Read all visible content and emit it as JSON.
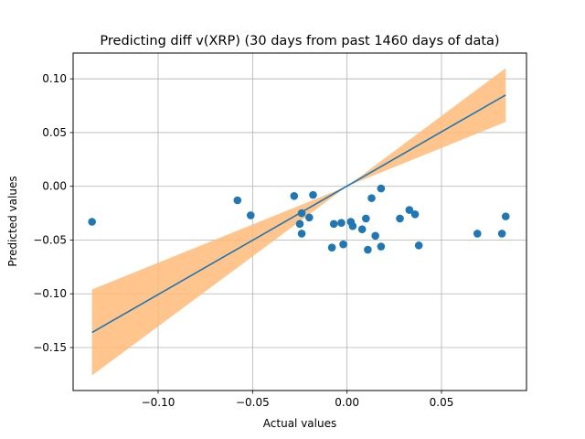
{
  "chart_data": {
    "type": "scatter",
    "title": "Predicting diff v(XRP) (30 days from past 1460 days of data)",
    "xlabel": "Actual values",
    "ylabel": "Predicted values",
    "xlim": [
      -0.145,
      0.095
    ],
    "ylim": [
      -0.19,
      0.124
    ],
    "xticks": [
      -0.1,
      -0.05,
      0.0,
      0.05
    ],
    "xtick_labels": [
      "−0.10",
      "−0.05",
      "0.00",
      "0.05"
    ],
    "yticks": [
      -0.15,
      -0.1,
      -0.05,
      0.0,
      0.05,
      0.1
    ],
    "ytick_labels": [
      "−0.15",
      "−0.10",
      "−0.05",
      "0.00",
      "0.05",
      "0.10"
    ],
    "grid": true,
    "colors": {
      "points": "#1f77b4",
      "fit_line": "#1f77b4",
      "band": "#ffbb78",
      "grid": "#b0b0b0"
    },
    "points": [
      {
        "x": -0.135,
        "y": -0.033
      },
      {
        "x": -0.058,
        "y": -0.013
      },
      {
        "x": -0.051,
        "y": -0.027
      },
      {
        "x": -0.028,
        "y": -0.009
      },
      {
        "x": -0.025,
        "y": -0.035
      },
      {
        "x": -0.024,
        "y": -0.025
      },
      {
        "x": -0.024,
        "y": -0.044
      },
      {
        "x": -0.02,
        "y": -0.029
      },
      {
        "x": -0.018,
        "y": -0.008
      },
      {
        "x": -0.008,
        "y": -0.057
      },
      {
        "x": -0.007,
        "y": -0.035
      },
      {
        "x": -0.003,
        "y": -0.034
      },
      {
        "x": -0.002,
        "y": -0.054
      },
      {
        "x": 0.002,
        "y": -0.033
      },
      {
        "x": 0.003,
        "y": -0.037
      },
      {
        "x": 0.008,
        "y": -0.04
      },
      {
        "x": 0.01,
        "y": -0.03
      },
      {
        "x": 0.011,
        "y": -0.059
      },
      {
        "x": 0.013,
        "y": -0.011
      },
      {
        "x": 0.015,
        "y": -0.046
      },
      {
        "x": 0.018,
        "y": -0.002
      },
      {
        "x": 0.018,
        "y": -0.056
      },
      {
        "x": 0.028,
        "y": -0.03
      },
      {
        "x": 0.033,
        "y": -0.022
      },
      {
        "x": 0.036,
        "y": -0.026
      },
      {
        "x": 0.038,
        "y": -0.055
      },
      {
        "x": 0.069,
        "y": -0.044
      },
      {
        "x": 0.082,
        "y": -0.044
      },
      {
        "x": 0.084,
        "y": -0.028
      }
    ],
    "fit_line": {
      "x": [
        -0.135,
        0.084
      ],
      "y": [
        -0.136,
        0.085
      ]
    },
    "confidence_band": {
      "x": [
        -0.135,
        0.0,
        0.084
      ],
      "upper": [
        -0.096,
        0.0,
        0.11
      ],
      "lower": [
        -0.176,
        0.0,
        0.06
      ]
    }
  }
}
